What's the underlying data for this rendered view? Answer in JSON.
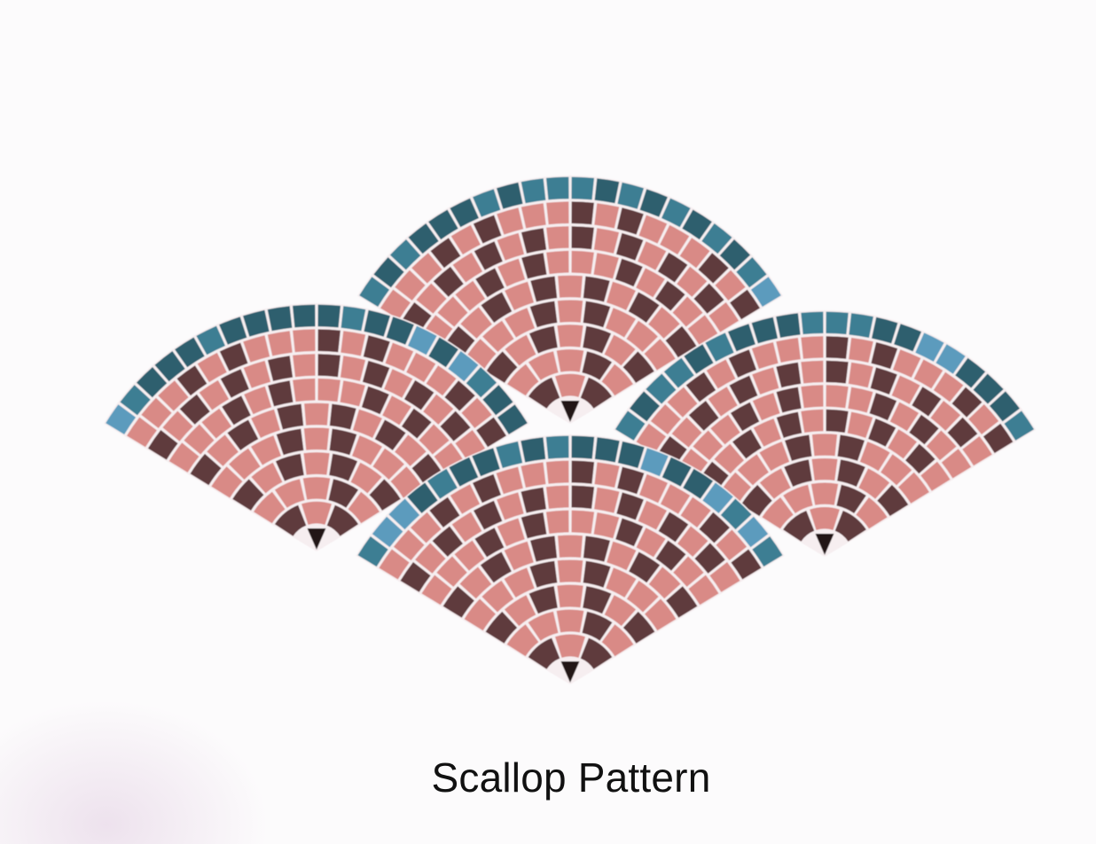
{
  "caption": "Scallop Pattern",
  "colors": {
    "border_tiles": [
      "#2f5f6e",
      "#3c7e93",
      "#5b9bbd"
    ],
    "accent_tiles": "#5f3a3c",
    "fill_tiles": "#d98a86",
    "grout": "#f6eef0",
    "center_wedge": "#241414"
  },
  "fans": [
    {
      "name": "fan-top-center"
    },
    {
      "name": "fan-left"
    },
    {
      "name": "fan-right"
    },
    {
      "name": "fan-bottom-center"
    }
  ]
}
